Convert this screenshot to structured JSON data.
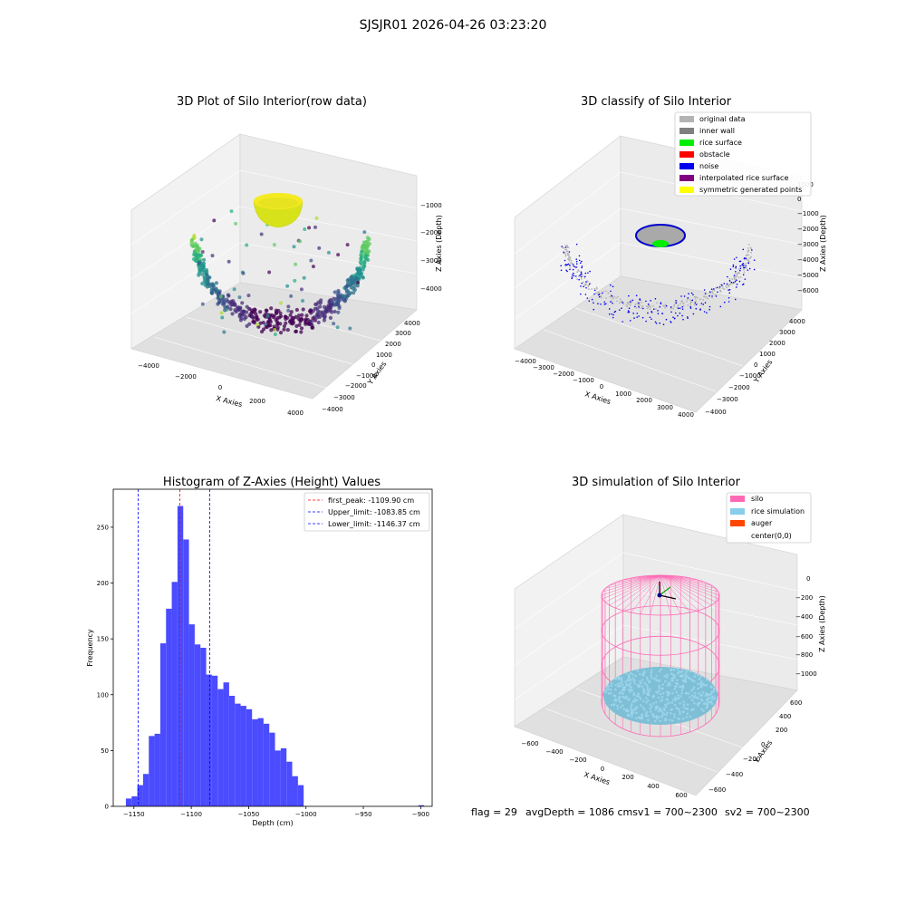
{
  "figure_title": "SJSJR01 2026-04-26 03:23:20",
  "footer": {
    "flag": "flag = 29",
    "avg_depth": "avgDepth = 1086 cmsv1 = 700~2300",
    "sv2": "sv2 = 700~2300"
  },
  "chart_data": [
    {
      "type": "scatter",
      "subtype": "3d",
      "title": "3D Plot of Silo Interior(row data)",
      "xlabel": "X Axies",
      "ylabel": "Y Axies",
      "zlabel": "Z Axies (Depth)",
      "x_ticks": [
        "−4000",
        "−2000",
        "0",
        "2000",
        "4000"
      ],
      "y_ticks": [
        "−4000",
        "−3000",
        "−2000",
        "−1000",
        "0",
        "1000",
        "2000",
        "3000",
        "4000"
      ],
      "z_ticks": [
        "−1000",
        "−2000",
        "−3000",
        "−4000"
      ],
      "colormap": "viridis",
      "colors": {
        "surface": "#e8e81a",
        "deep": "#440154",
        "mid": "#2a788e",
        "shallow": "#7ad151"
      }
    },
    {
      "type": "scatter",
      "subtype": "3d",
      "title": "3D classify of Silo Interior",
      "xlabel": "X Axies",
      "ylabel": "Y Axies",
      "zlabel": "Z Axies (Depth)",
      "x_ticks": [
        "−4000",
        "−3000",
        "−2000",
        "−1000",
        "0",
        "1000",
        "2000",
        "3000",
        "4000"
      ],
      "y_ticks": [
        "−4000",
        "−3000",
        "−2000",
        "−1000",
        "0",
        "1000",
        "2000",
        "3000",
        "4000"
      ],
      "z_ticks": [
        "1000",
        "0",
        "−1000",
        "−2000",
        "−3000",
        "−4000",
        "−5000",
        "−6000"
      ],
      "legend_position": "top-right",
      "legend": [
        {
          "label": "original data",
          "color": "#b3b3b3"
        },
        {
          "label": "inner wall",
          "color": "#808080"
        },
        {
          "label": "rice surface",
          "color": "#00ee00"
        },
        {
          "label": "obstacle",
          "color": "#ff0000"
        },
        {
          "label": "noise",
          "color": "#0000ee"
        },
        {
          "label": "interpolated rice surface",
          "color": "#800080"
        },
        {
          "label": "symmetric generated points",
          "color": "#ffff00"
        }
      ]
    },
    {
      "type": "bar",
      "subtype": "histogram",
      "title": "Histogram of Z-Axies (Height) Values",
      "xlabel": "Depth (cm)",
      "ylabel": "Frequency",
      "xlim": [
        -1168,
        -890
      ],
      "ylim": [
        0,
        284
      ],
      "x_ticks": [
        {
          "value": -1150,
          "label": "−1150"
        },
        {
          "value": -1100,
          "label": "−1100"
        },
        {
          "value": -1050,
          "label": "−1050"
        },
        {
          "value": -1000,
          "label": "−1000"
        },
        {
          "value": -950,
          "label": "−950"
        },
        {
          "value": -900,
          "label": "−900"
        }
      ],
      "y_ticks": [
        0,
        50,
        100,
        150,
        200,
        250
      ],
      "bar_color": "#4b4bff",
      "bin_width": 5,
      "bins": [
        {
          "x": -1157,
          "count": 7
        },
        {
          "x": -1152,
          "count": 9
        },
        {
          "x": -1147,
          "count": 19
        },
        {
          "x": -1142,
          "count": 29
        },
        {
          "x": -1137,
          "count": 63
        },
        {
          "x": -1132,
          "count": 65
        },
        {
          "x": -1127,
          "count": 146
        },
        {
          "x": -1122,
          "count": 177
        },
        {
          "x": -1117,
          "count": 201
        },
        {
          "x": -1112,
          "count": 269
        },
        {
          "x": -1107,
          "count": 239
        },
        {
          "x": -1102,
          "count": 163
        },
        {
          "x": -1097,
          "count": 145
        },
        {
          "x": -1092,
          "count": 142
        },
        {
          "x": -1087,
          "count": 118
        },
        {
          "x": -1082,
          "count": 117
        },
        {
          "x": -1077,
          "count": 105
        },
        {
          "x": -1072,
          "count": 111
        },
        {
          "x": -1067,
          "count": 99
        },
        {
          "x": -1062,
          "count": 92
        },
        {
          "x": -1057,
          "count": 90
        },
        {
          "x": -1052,
          "count": 87
        },
        {
          "x": -1047,
          "count": 78
        },
        {
          "x": -1042,
          "count": 79
        },
        {
          "x": -1037,
          "count": 74
        },
        {
          "x": -1032,
          "count": 66
        },
        {
          "x": -1027,
          "count": 50
        },
        {
          "x": -1022,
          "count": 52
        },
        {
          "x": -1017,
          "count": 40
        },
        {
          "x": -1012,
          "count": 27
        },
        {
          "x": -1007,
          "count": 19
        },
        {
          "x": -902,
          "count": 1
        }
      ],
      "vlines": [
        {
          "label": "first_peak: -1109.90 cm",
          "x": -1109.9,
          "color": "#ff0000"
        },
        {
          "label": "Upper_limit: -1083.85 cm",
          "x": -1083.85,
          "color": "#0000ff"
        },
        {
          "label": "Lower_limit: -1146.37 cm",
          "x": -1146.37,
          "color": "#0000ff"
        }
      ],
      "legend_position": "top-right"
    },
    {
      "type": "scatter",
      "subtype": "3d",
      "title": "3D simulation of Silo Interior",
      "xlabel": "X Axies",
      "ylabel": "Y Axies",
      "zlabel": "Z Axies (Depth)",
      "x_ticks": [
        "−600",
        "−400",
        "−200",
        "0",
        "200",
        "400",
        "600"
      ],
      "y_ticks": [
        "−600",
        "−400",
        "−200",
        "0",
        "200",
        "400",
        "600"
      ],
      "z_ticks": [
        "0",
        "−200",
        "−400",
        "−600",
        "−800",
        "−1000"
      ],
      "legend_position": "top-right",
      "legend": [
        {
          "label": "silo",
          "color": "#ff69b4"
        },
        {
          "label": "rice simulation",
          "color": "#87ceeb"
        },
        {
          "label": "auger",
          "color": "#ff4500"
        },
        {
          "label": "center(0,0)",
          "color": ""
        }
      ]
    }
  ]
}
